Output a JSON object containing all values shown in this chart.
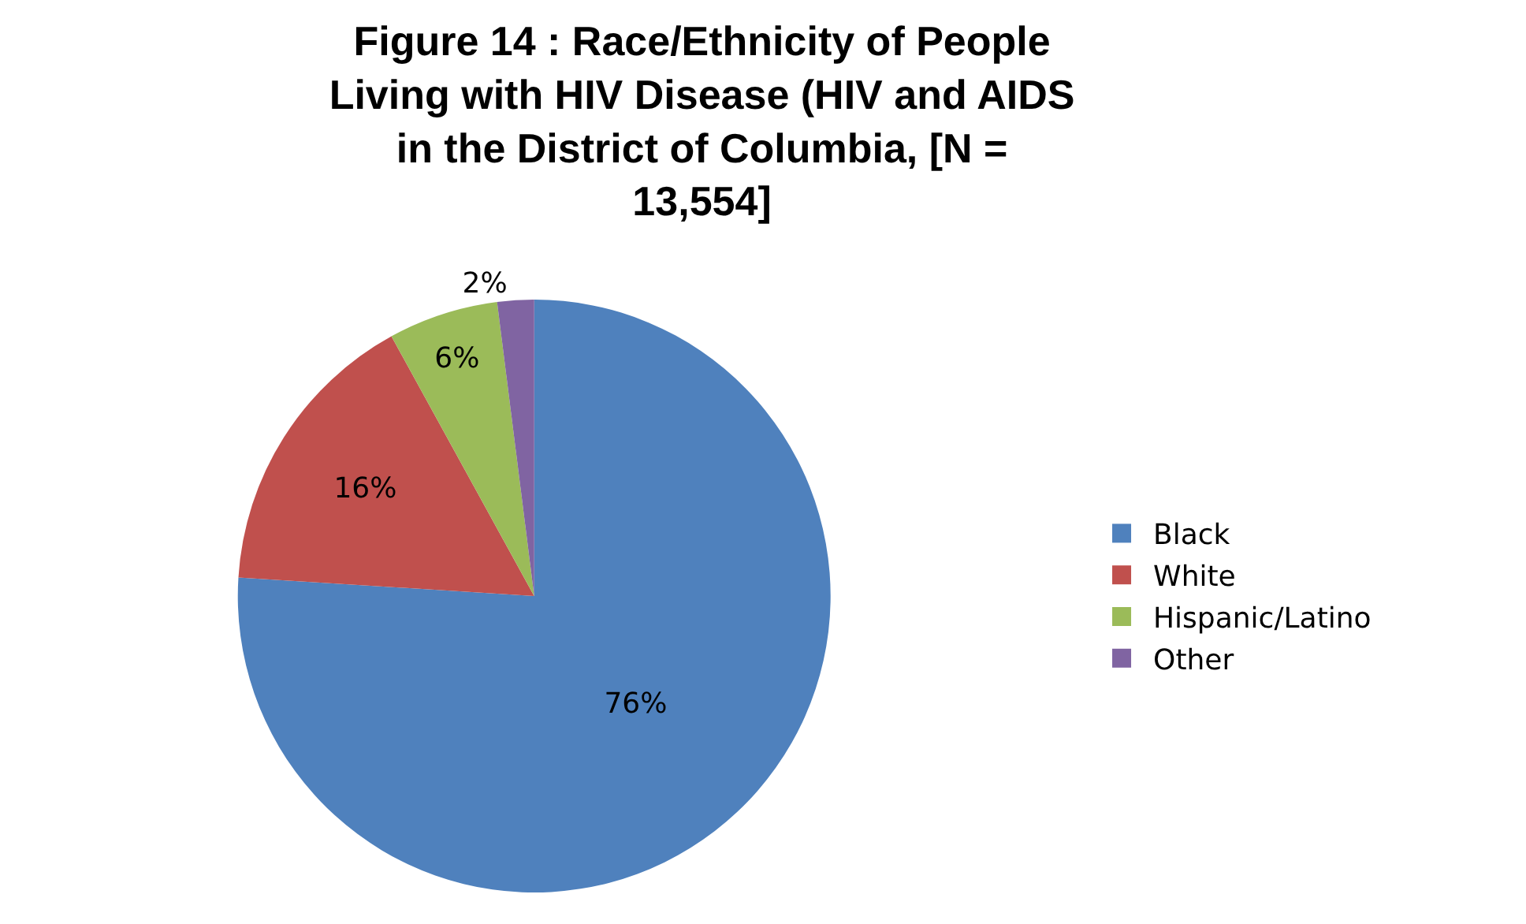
{
  "chart_data": {
    "type": "pie",
    "title": "Figure 14 : Race/Ethnicity of People Living with HIV Disease (HIV and AIDS in the District of Columbia, [N = 13,554]",
    "categories": [
      "Black",
      "White",
      "Hispanic/Latino",
      "Other"
    ],
    "values": [
      76,
      16,
      6,
      2
    ],
    "colors": [
      "#4f81bd",
      "#c0504d",
      "#9bbb59",
      "#8064a2"
    ],
    "value_labels": [
      "76%",
      "16%",
      "6%",
      "2%"
    ],
    "legend": "right"
  }
}
